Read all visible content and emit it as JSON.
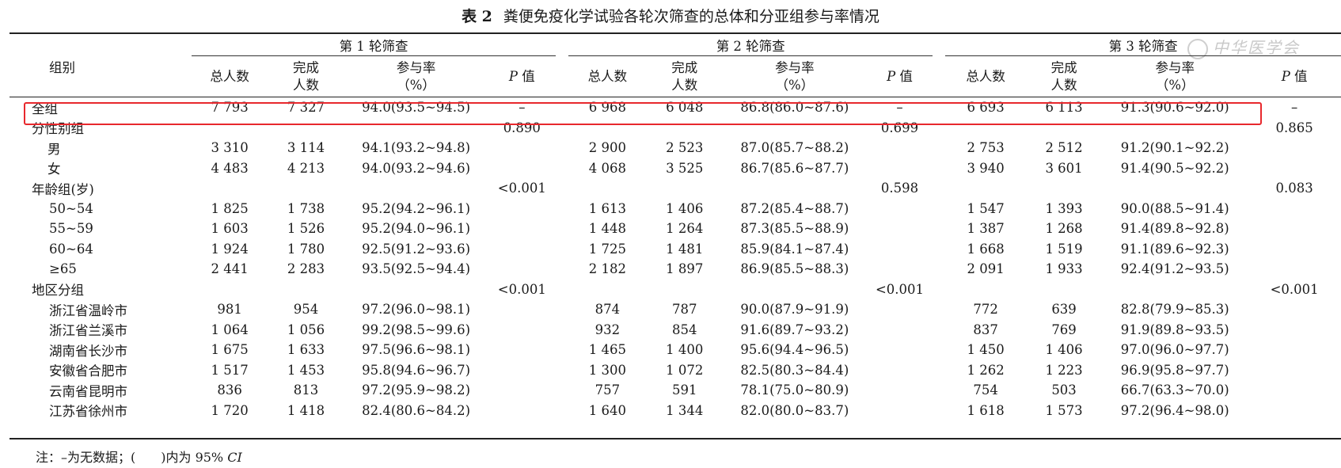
{
  "title": {
    "label": "表 2",
    "text": "粪便免疫化学试验各轮次筛查的总体和分亚组参与率情况"
  },
  "watermark": "中华医学会",
  "header": {
    "group_col": "组别",
    "rounds": [
      "第 1 轮筛查",
      "第 2 轮筛查",
      "第 3 轮筛查"
    ],
    "total": "总人数",
    "done_1": "完成",
    "done_2": "人数",
    "rate_1": "参与率",
    "rate_2": "（%）",
    "p_italic": "P",
    "p_suffix": " 值"
  },
  "rows": [
    {
      "label": "全组",
      "indent": "top",
      "r1": [
        "7 793",
        "7 327",
        "94.0(93.5~94.5)",
        "–"
      ],
      "r2": [
        "6 968",
        "6 048",
        "86.8(86.0~87.6)",
        "–"
      ],
      "r3": [
        "6 693",
        "6 113",
        "91.3(90.6~92.0)",
        "–"
      ]
    },
    {
      "label": "分性别组",
      "indent": "top",
      "r1": [
        "",
        "",
        "",
        "0.890"
      ],
      "r2": [
        "",
        "",
        "",
        "0.699"
      ],
      "r3": [
        "",
        "",
        "",
        "0.865"
      ]
    },
    {
      "label": "男",
      "indent": "sub",
      "r1": [
        "3 310",
        "3 114",
        "94.1(93.2~94.8)",
        ""
      ],
      "r2": [
        "2 900",
        "2 523",
        "87.0(85.7~88.2)",
        ""
      ],
      "r3": [
        "2 753",
        "2 512",
        "91.2(90.1~92.2)",
        ""
      ]
    },
    {
      "label": "女",
      "indent": "sub",
      "r1": [
        "4 483",
        "4 213",
        "94.0(93.2~94.6)",
        ""
      ],
      "r2": [
        "4 068",
        "3 525",
        "86.7(85.6~87.7)",
        ""
      ],
      "r3": [
        "3 940",
        "3 601",
        "91.4(90.5~92.2)",
        ""
      ]
    },
    {
      "label": "年龄组(岁)",
      "indent": "top",
      "r1": [
        "",
        "",
        "",
        "<0.001"
      ],
      "r2": [
        "",
        "",
        "",
        "0.598"
      ],
      "r3": [
        "",
        "",
        "",
        "0.083"
      ]
    },
    {
      "label": "50~54",
      "indent": "reg",
      "r1": [
        "1 825",
        "1 738",
        "95.2(94.2~96.1)",
        ""
      ],
      "r2": [
        "1 613",
        "1 406",
        "87.2(85.4~88.7)",
        ""
      ],
      "r3": [
        "1 547",
        "1 393",
        "90.0(88.5~91.4)",
        ""
      ]
    },
    {
      "label": "55~59",
      "indent": "reg",
      "r1": [
        "1 603",
        "1 526",
        "95.2(94.0~96.1)",
        ""
      ],
      "r2": [
        "1 448",
        "1 264",
        "87.3(85.5~88.9)",
        ""
      ],
      "r3": [
        "1 387",
        "1 268",
        "91.4(89.8~92.8)",
        ""
      ]
    },
    {
      "label": "60~64",
      "indent": "reg",
      "r1": [
        "1 924",
        "1 780",
        "92.5(91.2~93.6)",
        ""
      ],
      "r2": [
        "1 725",
        "1 481",
        "85.9(84.1~87.4)",
        ""
      ],
      "r3": [
        "1 668",
        "1 519",
        "91.1(89.6~92.3)",
        ""
      ]
    },
    {
      "label": "≥65",
      "indent": "reg",
      "r1": [
        "2 441",
        "2 283",
        "93.5(92.5~94.4)",
        ""
      ],
      "r2": [
        "2 182",
        "1 897",
        "86.9(85.5~88.3)",
        ""
      ],
      "r3": [
        "2 091",
        "1 933",
        "92.4(91.2~93.5)",
        ""
      ]
    },
    {
      "label": "地区分组",
      "indent": "top",
      "r1": [
        "",
        "",
        "",
        "<0.001"
      ],
      "r2": [
        "",
        "",
        "",
        "<0.001"
      ],
      "r3": [
        "",
        "",
        "",
        "<0.001"
      ]
    },
    {
      "label": "浙江省温岭市",
      "indent": "reg",
      "r1": [
        "981",
        "954",
        "97.2(96.0~98.1)",
        ""
      ],
      "r2": [
        "874",
        "787",
        "90.0(87.9~91.9)",
        ""
      ],
      "r3": [
        "772",
        "639",
        "82.8(79.9~85.3)",
        ""
      ]
    },
    {
      "label": "浙江省兰溪市",
      "indent": "reg",
      "r1": [
        "1 064",
        "1 056",
        "99.2(98.5~99.6)",
        ""
      ],
      "r2": [
        "932",
        "854",
        "91.6(89.7~93.2)",
        ""
      ],
      "r3": [
        "837",
        "769",
        "91.9(89.8~93.5)",
        ""
      ]
    },
    {
      "label": "湖南省长沙市",
      "indent": "reg",
      "r1": [
        "1 675",
        "1 633",
        "97.5(96.6~98.1)",
        ""
      ],
      "r2": [
        "1 465",
        "1 400",
        "95.6(94.4~96.5)",
        ""
      ],
      "r3": [
        "1 450",
        "1 406",
        "97.0(96.0~97.7)",
        ""
      ]
    },
    {
      "label": "安徽省合肥市",
      "indent": "reg",
      "r1": [
        "1 517",
        "1 453",
        "95.8(94.6~96.7)",
        ""
      ],
      "r2": [
        "1 300",
        "1 072",
        "82.5(80.3~84.4)",
        ""
      ],
      "r3": [
        "1 262",
        "1 223",
        "96.9(95.8~97.7)",
        ""
      ]
    },
    {
      "label": "云南省昆明市",
      "indent": "reg",
      "r1": [
        "836",
        "813",
        "97.2(95.9~98.2)",
        ""
      ],
      "r2": [
        "757",
        "591",
        "78.1(75.0~80.9)",
        ""
      ],
      "r3": [
        "754",
        "503",
        "66.7(63.3~70.0)",
        ""
      ]
    },
    {
      "label": "江苏省徐州市",
      "indent": "reg",
      "r1": [
        "1 720",
        "1 418",
        "82.4(80.6~84.2)",
        ""
      ],
      "r2": [
        "1 640",
        "1 344",
        "82.0(80.0~83.7)",
        ""
      ],
      "r3": [
        "1 618",
        "1 573",
        "97.2(96.4~98.0)",
        ""
      ]
    }
  ],
  "note": {
    "prefix": "注：–为无数据；(　　)内为 95%",
    "ci": "CI"
  }
}
